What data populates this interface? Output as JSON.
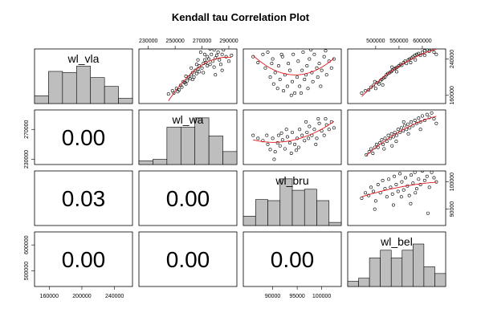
{
  "chart_data": {
    "type": "scatter",
    "subtype": "correlation-matrix",
    "title": "Kendall tau Correlation Plot",
    "variables": [
      "wl_vla",
      "wl_wa",
      "wl_bru",
      "wl_bel"
    ],
    "ranges": [
      [
        142000,
        262000
      ],
      [
        223000,
        296000
      ],
      [
        84000,
        104000
      ],
      [
        440000,
        650000
      ]
    ],
    "ticks": [
      [
        "160000",
        "200000",
        "240000"
      ],
      [
        "230000",
        "250000",
        "270000",
        "290000"
      ],
      [
        "90000",
        "95000",
        "100000"
      ],
      [
        "500000",
        "550000",
        "600000"
      ]
    ],
    "tick_values": [
      [
        160000,
        200000,
        240000
      ],
      [
        230000,
        250000,
        270000,
        290000
      ],
      [
        90000,
        95000,
        100000
      ],
      [
        500000,
        550000,
        600000
      ]
    ],
    "side_ticks": {
      "0": {
        "side": "right",
        "labels": [
          "160000",
          "240000"
        ],
        "values": [
          160000,
          240000
        ]
      },
      "1": {
        "side": "left",
        "labels": [
          "230000",
          "270000"
        ],
        "values": [
          230000,
          270000
        ]
      },
      "2": {
        "side": "right",
        "labels": [
          "90000",
          "100000"
        ],
        "values": [
          90000,
          100000
        ]
      },
      "3": {
        "side": "left",
        "labels": [
          "500000",
          "600000"
        ],
        "values": [
          500000,
          600000
        ]
      }
    },
    "correlations": [
      {
        "row": 1,
        "col": 0,
        "label": "0.00"
      },
      {
        "row": 2,
        "col": 0,
        "label": "0.03"
      },
      {
        "row": 2,
        "col": 1,
        "label": "0.00"
      },
      {
        "row": 3,
        "col": 0,
        "label": "0.00"
      },
      {
        "row": 3,
        "col": 1,
        "label": "0.00"
      },
      {
        "row": 3,
        "col": 2,
        "label": "0.00"
      }
    ],
    "histograms": [
      [
        0.15,
        0.62,
        0.6,
        0.72,
        0.5,
        0.33,
        0.1
      ],
      [
        0.07,
        0.1,
        0.72,
        0.72,
        0.9,
        0.55,
        0.25
      ],
      [
        0.18,
        0.5,
        0.48,
        0.9,
        0.68,
        0.7,
        0.48,
        0.06
      ],
      [
        0.1,
        0.16,
        0.55,
        0.7,
        0.55,
        0.7,
        0.82,
        0.38,
        0.25
      ]
    ],
    "scatter_points": {
      "0-1": [
        [
          245000,
          163000
        ],
        [
          248000,
          170000
        ],
        [
          251000,
          175000
        ],
        [
          252000,
          168000
        ],
        [
          254000,
          182000
        ],
        [
          255000,
          178000
        ],
        [
          257000,
          188000
        ],
        [
          258000,
          185000
        ],
        [
          259000,
          192000
        ],
        [
          260000,
          200000
        ],
        [
          261000,
          197000
        ],
        [
          262000,
          205000
        ],
        [
          263000,
          210000
        ],
        [
          264000,
          200000
        ],
        [
          265000,
          215000
        ],
        [
          266000,
          208000
        ],
        [
          267000,
          218000
        ],
        [
          268000,
          212000
        ],
        [
          268000,
          225000
        ],
        [
          270000,
          220000
        ],
        [
          271000,
          230000
        ],
        [
          272000,
          238000
        ],
        [
          273000,
          232000
        ],
        [
          274000,
          245000
        ],
        [
          275000,
          240000
        ],
        [
          276000,
          228000
        ],
        [
          277000,
          250000
        ],
        [
          278000,
          235000
        ],
        [
          279000,
          222000
        ],
        [
          280000,
          242000
        ],
        [
          281000,
          248000
        ],
        [
          282000,
          255000
        ],
        [
          283000,
          238000
        ],
        [
          285000,
          250000
        ],
        [
          286000,
          260000
        ],
        [
          288000,
          245000
        ],
        [
          290000,
          235000
        ],
        [
          292000,
          248000
        ],
        [
          269000,
          255000
        ],
        [
          266000,
          228000
        ],
        [
          263000,
          195000
        ],
        [
          256000,
          190000
        ],
        [
          253000,
          172000
        ],
        [
          271000,
          210000
        ],
        [
          274000,
          225000
        ],
        [
          279000,
          260000
        ],
        [
          284000,
          228000
        ],
        [
          262000,
          220000
        ],
        [
          258000,
          202000
        ],
        [
          276000,
          262000
        ],
        [
          249000,
          165000
        ],
        [
          272000,
          250000
        ],
        [
          267000,
          238000
        ],
        [
          285000,
          215000
        ],
        [
          280000,
          205000
        ]
      ],
      "0-2": [
        [
          86000,
          245000
        ],
        [
          87000,
          232000
        ],
        [
          88000,
          250000
        ],
        [
          88500,
          220000
        ],
        [
          89000,
          255000
        ],
        [
          89500,
          200000
        ],
        [
          90000,
          240000
        ],
        [
          90200,
          185000
        ],
        [
          90500,
          210000
        ],
        [
          91000,
          175000
        ],
        [
          91200,
          225000
        ],
        [
          91500,
          195000
        ],
        [
          92000,
          245000
        ],
        [
          92200,
          170000
        ],
        [
          92500,
          205000
        ],
        [
          93000,
          180000
        ],
        [
          93200,
          230000
        ],
        [
          93500,
          215000
        ],
        [
          94000,
          190000
        ],
        [
          94200,
          250000
        ],
        [
          94500,
          165000
        ],
        [
          95000,
          200000
        ],
        [
          95200,
          235000
        ],
        [
          95500,
          180000
        ],
        [
          96000,
          215000
        ],
        [
          96200,
          255000
        ],
        [
          96500,
          195000
        ],
        [
          97000,
          225000
        ],
        [
          97200,
          175000
        ],
        [
          97500,
          240000
        ],
        [
          98000,
          210000
        ],
        [
          98200,
          190000
        ],
        [
          98500,
          250000
        ],
        [
          99000,
          220000
        ],
        [
          99200,
          200000
        ],
        [
          99500,
          230000
        ],
        [
          100000,
          215000
        ],
        [
          100500,
          245000
        ],
        [
          101000,
          205000
        ],
        [
          101500,
          235000
        ],
        [
          102000,
          220000
        ],
        [
          102500,
          240000
        ],
        [
          93800,
          160000
        ],
        [
          95800,
          165000
        ],
        [
          91800,
          250000
        ],
        [
          97800,
          260000
        ],
        [
          99800,
          180000
        ],
        [
          89800,
          230000
        ],
        [
          100800,
          258000
        ],
        [
          96800,
          205000
        ]
      ],
      "0-3": [
        [
          470000,
          165000
        ],
        [
          478000,
          170000
        ],
        [
          485000,
          172000
        ],
        [
          490000,
          178000
        ],
        [
          495000,
          182000
        ],
        [
          500000,
          175000
        ],
        [
          503000,
          188000
        ],
        [
          507000,
          185000
        ],
        [
          510000,
          192000
        ],
        [
          513000,
          195000
        ],
        [
          517000,
          198000
        ],
        [
          520000,
          200000
        ],
        [
          523000,
          205000
        ],
        [
          526000,
          208000
        ],
        [
          530000,
          210000
        ],
        [
          533000,
          212000
        ],
        [
          536000,
          215000
        ],
        [
          540000,
          218000
        ],
        [
          543000,
          220000
        ],
        [
          546000,
          222000
        ],
        [
          550000,
          225000
        ],
        [
          553000,
          228000
        ],
        [
          556000,
          226000
        ],
        [
          560000,
          232000
        ],
        [
          563000,
          235000
        ],
        [
          566000,
          230000
        ],
        [
          570000,
          238000
        ],
        [
          573000,
          240000
        ],
        [
          577000,
          242000
        ],
        [
          580000,
          245000
        ],
        [
          584000,
          248000
        ],
        [
          588000,
          250000
        ],
        [
          592000,
          252000
        ],
        [
          596000,
          248000
        ],
        [
          600000,
          255000
        ],
        [
          605000,
          258000
        ],
        [
          610000,
          260000
        ],
        [
          615000,
          257000
        ],
        [
          620000,
          262000
        ],
        [
          625000,
          255000
        ],
        [
          630000,
          250000
        ],
        [
          515000,
          183000
        ],
        [
          545000,
          212000
        ],
        [
          575000,
          232000
        ],
        [
          605000,
          248000
        ],
        [
          535000,
          222000
        ],
        [
          498000,
          190000
        ],
        [
          585000,
          238000
        ]
      ],
      "1-2": [
        [
          86000,
          262000
        ],
        [
          87000,
          258000
        ],
        [
          88000,
          255000
        ],
        [
          89000,
          250000
        ],
        [
          89500,
          243000
        ],
        [
          90000,
          258000
        ],
        [
          90500,
          240000
        ],
        [
          91000,
          252000
        ],
        [
          91200,
          262000
        ],
        [
          91500,
          248000
        ],
        [
          92000,
          256000
        ],
        [
          92500,
          244000
        ],
        [
          93000,
          260000
        ],
        [
          93500,
          252000
        ],
        [
          94000,
          266000
        ],
        [
          94500,
          250000
        ],
        [
          95000,
          258000
        ],
        [
          95500,
          270000
        ],
        [
          96000,
          262000
        ],
        [
          96500,
          255000
        ],
        [
          97000,
          266000
        ],
        [
          97500,
          274000
        ],
        [
          98000,
          262000
        ],
        [
          98500,
          270000
        ],
        [
          99000,
          258000
        ],
        [
          99500,
          278000
        ],
        [
          100000,
          268000
        ],
        [
          100500,
          262000
        ],
        [
          101000,
          276000
        ],
        [
          101500,
          270000
        ],
        [
          102000,
          280000
        ],
        [
          102500,
          272000
        ],
        [
          90300,
          230000
        ],
        [
          92800,
          270000
        ],
        [
          94800,
          242000
        ],
        [
          96800,
          280000
        ],
        [
          98800,
          250000
        ],
        [
          100800,
          284000
        ],
        [
          88800,
          262000
        ],
        [
          95300,
          246000
        ],
        [
          97300,
          258000
        ],
        [
          99300,
          284000
        ],
        [
          91800,
          265000
        ],
        [
          93800,
          238000
        ]
      ],
      "1-3": [
        [
          480000,
          236000
        ],
        [
          486000,
          240000
        ],
        [
          490000,
          244000
        ],
        [
          494000,
          238000
        ],
        [
          498000,
          246000
        ],
        [
          502000,
          250000
        ],
        [
          505000,
          246000
        ],
        [
          509000,
          252000
        ],
        [
          513000,
          256000
        ],
        [
          516000,
          250000
        ],
        [
          520000,
          258000
        ],
        [
          524000,
          254000
        ],
        [
          527000,
          262000
        ],
        [
          531000,
          258000
        ],
        [
          534000,
          264000
        ],
        [
          538000,
          260000
        ],
        [
          541000,
          266000
        ],
        [
          545000,
          262000
        ],
        [
          548000,
          270000
        ],
        [
          552000,
          266000
        ],
        [
          555000,
          272000
        ],
        [
          559000,
          268000
        ],
        [
          562000,
          275000
        ],
        [
          566000,
          270000
        ],
        [
          569000,
          277000
        ],
        [
          573000,
          272000
        ],
        [
          576000,
          280000
        ],
        [
          580000,
          275000
        ],
        [
          584000,
          282000
        ],
        [
          588000,
          278000
        ],
        [
          592000,
          285000
        ],
        [
          596000,
          280000
        ],
        [
          600000,
          288000
        ],
        [
          605000,
          282000
        ],
        [
          610000,
          290000
        ],
        [
          615000,
          286000
        ],
        [
          620000,
          292000
        ],
        [
          625000,
          284000
        ],
        [
          630000,
          278000
        ],
        [
          518000,
          244000
        ],
        [
          544000,
          254000
        ],
        [
          570000,
          264000
        ],
        [
          596000,
          270000
        ],
        [
          535000,
          248000
        ],
        [
          560000,
          280000
        ]
      ],
      "2-3": [
        [
          470000,
          94000
        ],
        [
          478000,
          96000
        ],
        [
          485000,
          95000
        ],
        [
          490000,
          98000
        ],
        [
          495000,
          96500
        ],
        [
          500000,
          93000
        ],
        [
          505000,
          99000
        ],
        [
          510000,
          96000
        ],
        [
          515000,
          100500
        ],
        [
          520000,
          97500
        ],
        [
          524000,
          94500
        ],
        [
          528000,
          101000
        ],
        [
          532000,
          98000
        ],
        [
          536000,
          95500
        ],
        [
          540000,
          102000
        ],
        [
          544000,
          99000
        ],
        [
          548000,
          96500
        ],
        [
          552000,
          103000
        ],
        [
          556000,
          100000
        ],
        [
          560000,
          97000
        ],
        [
          564000,
          101500
        ],
        [
          568000,
          98500
        ],
        [
          572000,
          95000
        ],
        [
          576000,
          102500
        ],
        [
          580000,
          99500
        ],
        [
          584000,
          103500
        ],
        [
          588000,
          97500
        ],
        [
          592000,
          101000
        ],
        [
          596000,
          99000
        ],
        [
          600000,
          104000
        ],
        [
          605000,
          100500
        ],
        [
          610000,
          102000
        ],
        [
          615000,
          98000
        ],
        [
          620000,
          103500
        ],
        [
          625000,
          101500
        ],
        [
          630000,
          100000
        ],
        [
          498000,
          90000
        ],
        [
          538000,
          91500
        ],
        [
          575000,
          92000
        ],
        [
          612000,
          88500
        ],
        [
          555000,
          94500
        ],
        [
          585000,
          96000
        ]
      ]
    }
  }
}
